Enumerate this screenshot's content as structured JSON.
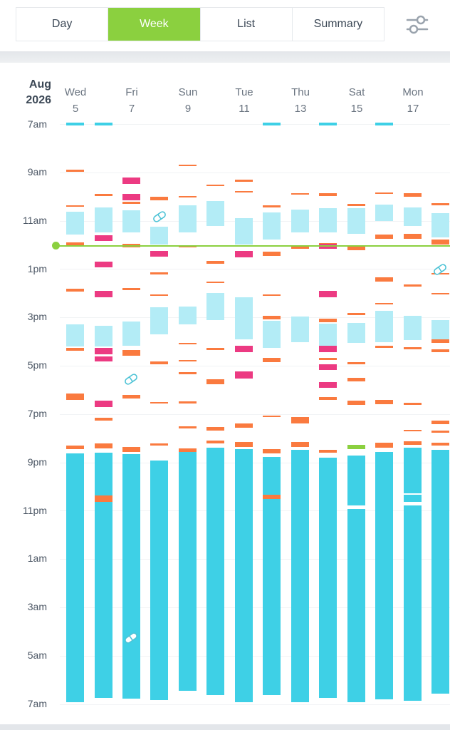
{
  "tabs": [
    {
      "label": "Day",
      "active": false
    },
    {
      "label": "Week",
      "active": true
    },
    {
      "label": "List",
      "active": false
    },
    {
      "label": "Summary",
      "active": false
    }
  ],
  "filter_icon": "sliders-icon",
  "month_label": [
    "Aug",
    "2026"
  ],
  "days": [
    {
      "dow": "Wed",
      "date": "5"
    },
    {
      "dow": "Fri",
      "date": "7"
    },
    {
      "dow": "Sun",
      "date": "9"
    },
    {
      "dow": "Tue",
      "date": "11"
    },
    {
      "dow": "Thu",
      "date": "13"
    },
    {
      "dow": "Sat",
      "date": "15"
    },
    {
      "dow": "Mon",
      "date": "17"
    }
  ],
  "hour_labels": [
    "7am",
    "9am",
    "11am",
    "1pm",
    "3pm",
    "5pm",
    "7pm",
    "9pm",
    "11pm",
    "1am",
    "3am",
    "5am",
    "7am"
  ],
  "colors": {
    "accent_green": "#8bd03f",
    "sleep_cyan": "#3ed0e6",
    "nap_light_cyan": "#b3ecf6",
    "feed_orange": "#fa7a3f",
    "diaper_pink": "#ec3a82"
  }
}
